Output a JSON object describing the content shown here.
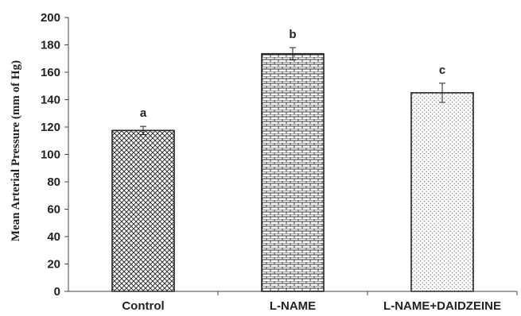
{
  "chart_data": {
    "type": "bar",
    "categories": [
      "Control",
      "L-NAME",
      "L-NAME+DAIDZEINE"
    ],
    "values": [
      117.5,
      173.5,
      145
    ],
    "errors": [
      3,
      4.5,
      7
    ],
    "significance_labels": [
      "a",
      "b",
      "c"
    ],
    "patterns": [
      "crosshatch",
      "brick",
      "dots"
    ],
    "ylabel": "Mean Arterial Pressure (mm of Hg)",
    "xlabel": "",
    "title": "",
    "ylim": [
      0,
      200
    ],
    "yticks": [
      0,
      20,
      40,
      60,
      80,
      100,
      120,
      140,
      160,
      180,
      200
    ],
    "grid": false,
    "legend": "none",
    "colors": {
      "axis": "#444444",
      "bar_fill": "#ffffff",
      "bar_stroke": "#222222",
      "pattern": "#333333"
    }
  }
}
